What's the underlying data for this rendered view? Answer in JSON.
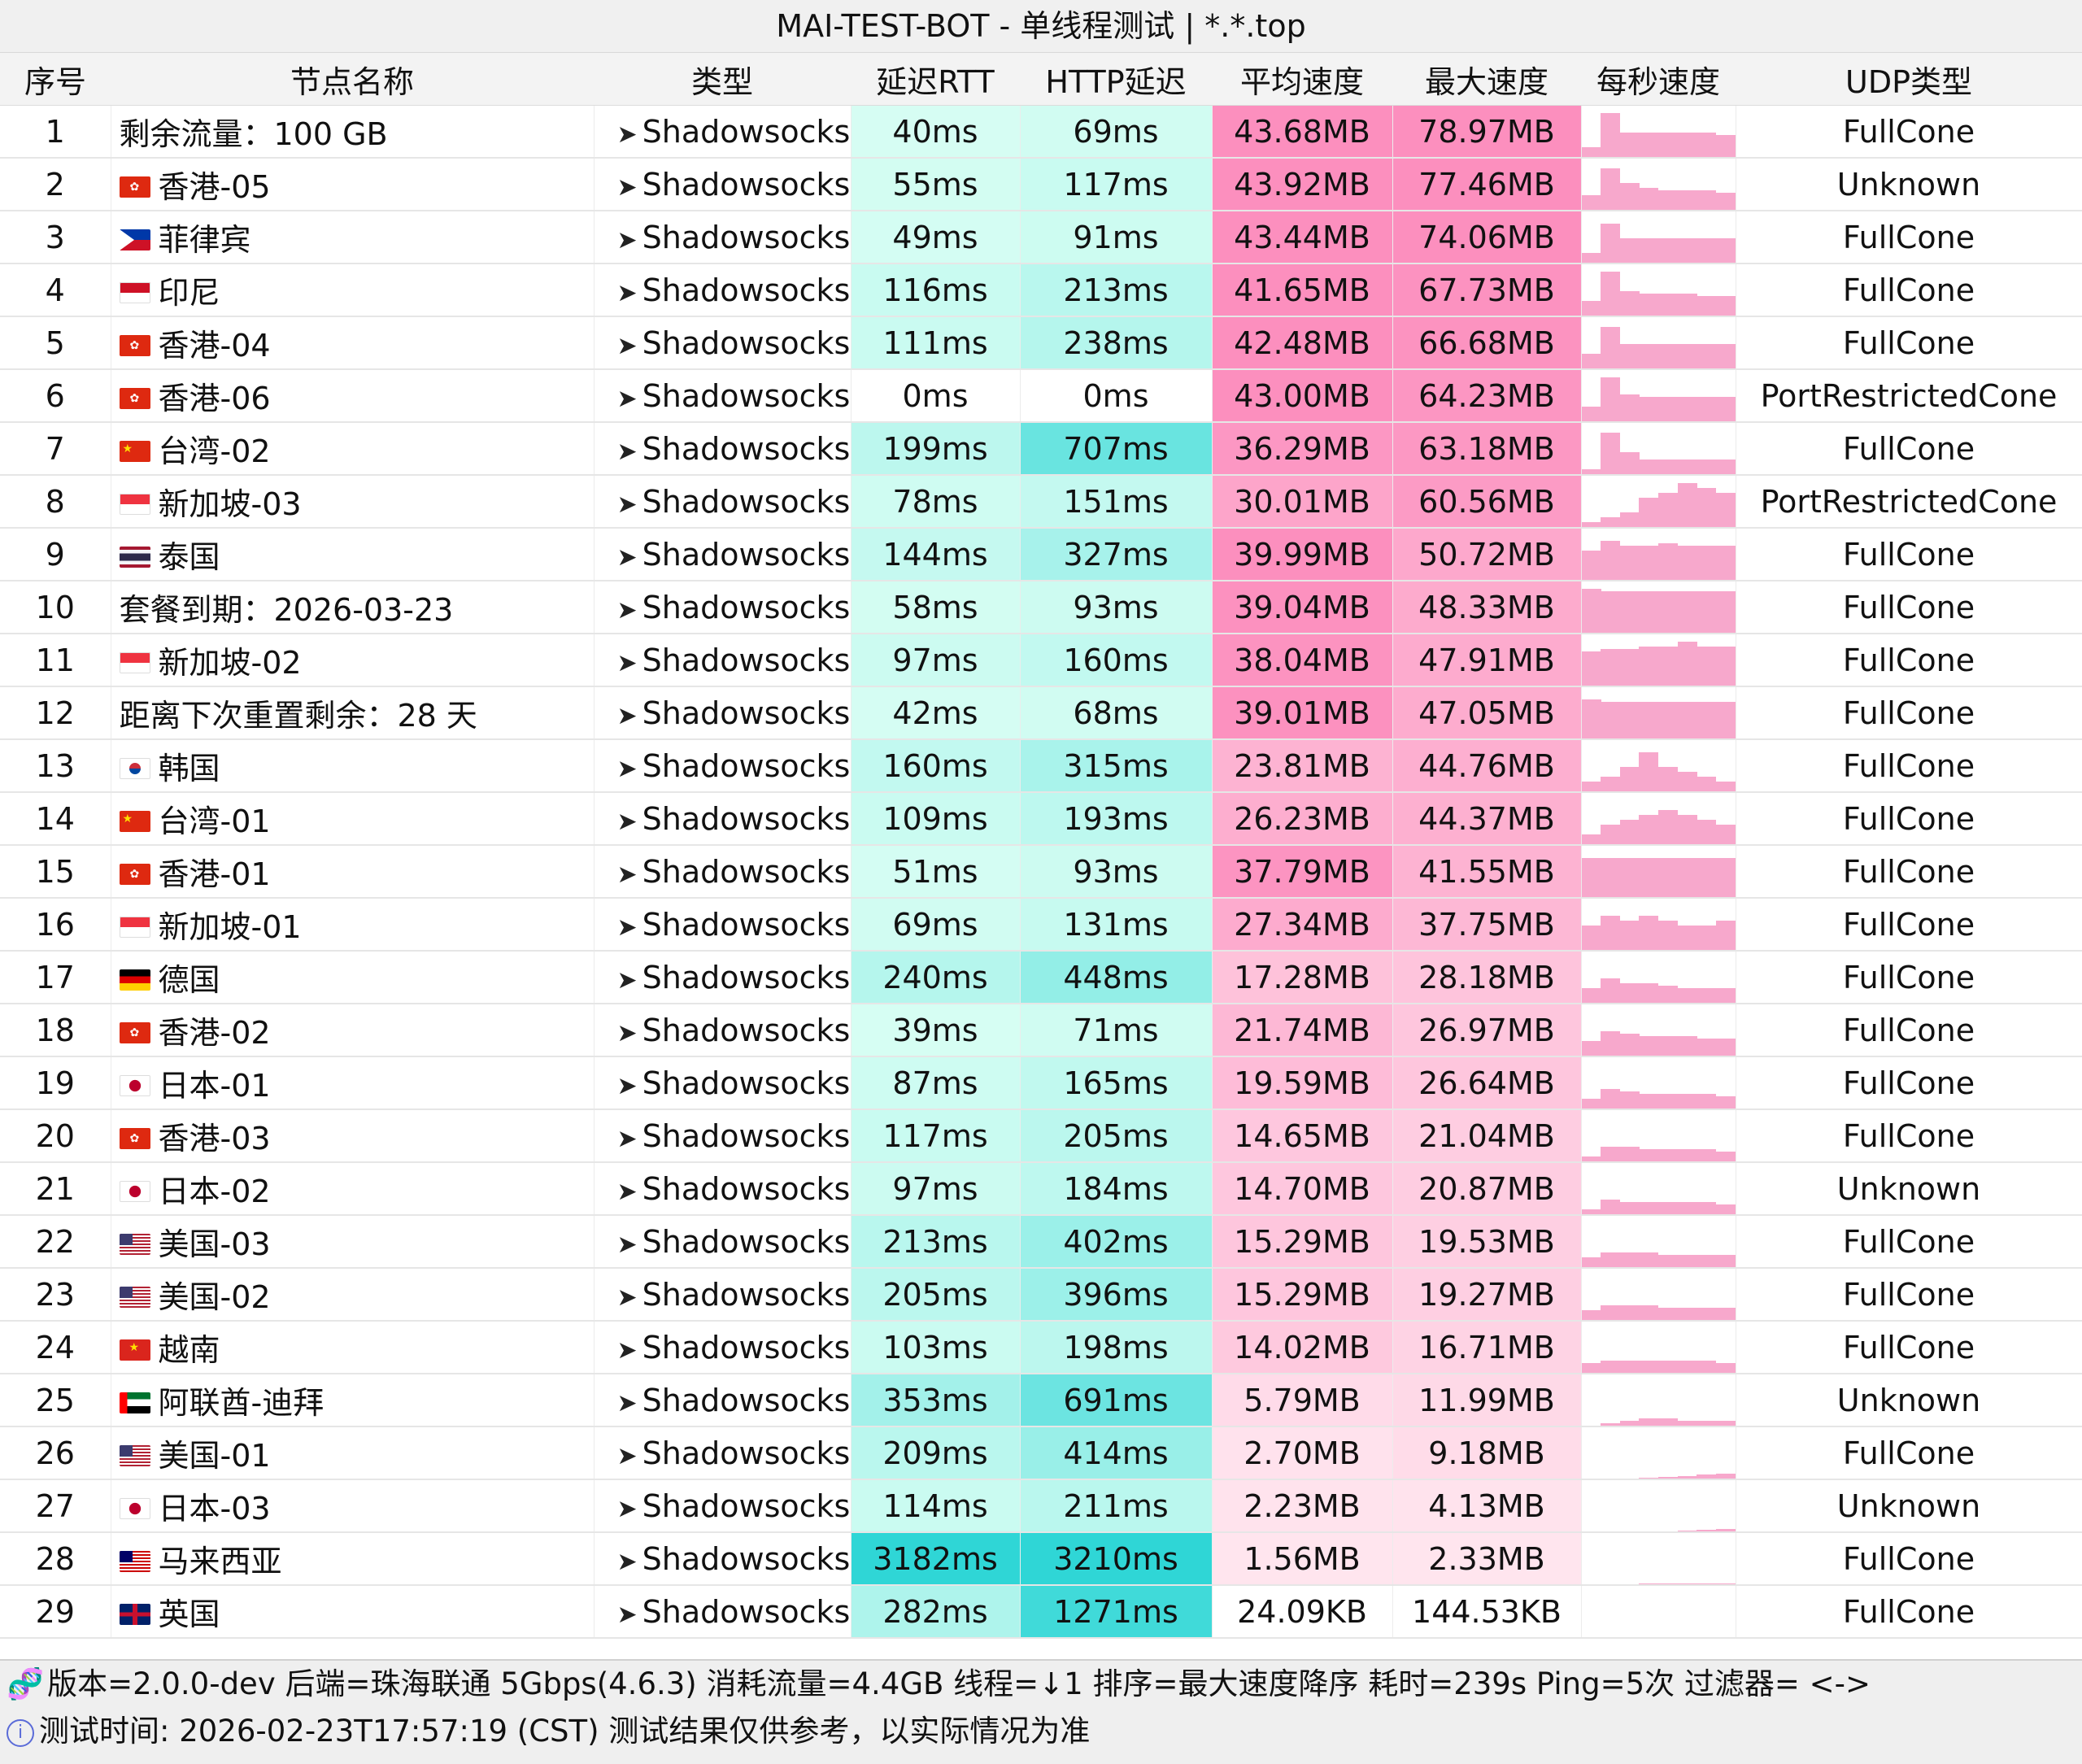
{
  "title": "MAI-TEST-BOT - 单线程测试 | *.*.top",
  "headers": [
    "序号",
    "节点名称",
    "类型",
    "延迟RTT",
    "HTTP延迟",
    "平均速度",
    "最大速度",
    "每秒速度",
    "UDP类型"
  ],
  "rows": [
    {
      "idx": "1",
      "flag": "none",
      "name": "剩余流量：100 GB",
      "type": "Shadowsocks",
      "rtt": "40ms",
      "http": "69ms",
      "avg": "43.68MB",
      "max": "78.97MB",
      "udp": "FullCone",
      "spark": [
        0.2,
        0.9,
        0.5,
        0.5,
        0.5,
        0.5,
        0.5,
        0.45
      ]
    },
    {
      "idx": "2",
      "flag": "hk",
      "name": "香港-05",
      "type": "Shadowsocks",
      "rtt": "55ms",
      "http": "117ms",
      "avg": "43.92MB",
      "max": "77.46MB",
      "udp": "Unknown",
      "spark": [
        0.3,
        0.85,
        0.55,
        0.45,
        0.4,
        0.4,
        0.4,
        0.35
      ]
    },
    {
      "idx": "3",
      "flag": "ph",
      "name": "菲律宾",
      "type": "Shadowsocks",
      "rtt": "49ms",
      "http": "91ms",
      "avg": "43.44MB",
      "max": "74.06MB",
      "udp": "FullCone",
      "spark": [
        0.2,
        0.8,
        0.5,
        0.5,
        0.5,
        0.5,
        0.5,
        0.5
      ]
    },
    {
      "idx": "4",
      "flag": "id",
      "name": "印尼",
      "type": "Shadowsocks",
      "rtt": "116ms",
      "http": "213ms",
      "avg": "41.65MB",
      "max": "67.73MB",
      "udp": "FullCone",
      "spark": [
        0.3,
        0.9,
        0.5,
        0.45,
        0.45,
        0.45,
        0.4,
        0.4
      ]
    },
    {
      "idx": "5",
      "flag": "hk",
      "name": "香港-04",
      "type": "Shadowsocks",
      "rtt": "111ms",
      "http": "238ms",
      "avg": "42.48MB",
      "max": "66.68MB",
      "udp": "FullCone",
      "spark": [
        0.3,
        0.85,
        0.5,
        0.5,
        0.5,
        0.5,
        0.5,
        0.5
      ]
    },
    {
      "idx": "6",
      "flag": "hk",
      "name": "香港-06",
      "type": "Shadowsocks",
      "rtt": "0ms",
      "http": "0ms",
      "avg": "43.00MB",
      "max": "64.23MB",
      "udp": "PortRestrictedCone",
      "spark": [
        0.3,
        0.9,
        0.55,
        0.5,
        0.5,
        0.5,
        0.5,
        0.5
      ]
    },
    {
      "idx": "7",
      "flag": "tw",
      "name": "台湾-02",
      "type": "Shadowsocks",
      "rtt": "199ms",
      "http": "707ms",
      "avg": "36.29MB",
      "max": "63.18MB",
      "udp": "FullCone",
      "spark": [
        0.1,
        0.85,
        0.45,
        0.3,
        0.3,
        0.3,
        0.3,
        0.3
      ]
    },
    {
      "idx": "8",
      "flag": "sg",
      "name": "新加坡-03",
      "type": "Shadowsocks",
      "rtt": "78ms",
      "http": "151ms",
      "avg": "30.01MB",
      "max": "60.56MB",
      "udp": "PortRestrictedCone",
      "spark": [
        0.1,
        0.2,
        0.3,
        0.6,
        0.7,
        0.9,
        0.8,
        0.7
      ]
    },
    {
      "idx": "9",
      "flag": "th",
      "name": "泰国",
      "type": "Shadowsocks",
      "rtt": "144ms",
      "http": "327ms",
      "avg": "39.99MB",
      "max": "50.72MB",
      "udp": "FullCone",
      "spark": [
        0.6,
        0.8,
        0.7,
        0.7,
        0.75,
        0.7,
        0.7,
        0.7
      ]
    },
    {
      "idx": "10",
      "flag": "none",
      "name": "套餐到期：2026-03-23",
      "type": "Shadowsocks",
      "rtt": "58ms",
      "http": "93ms",
      "avg": "39.04MB",
      "max": "48.33MB",
      "udp": "FullCone",
      "spark": [
        0.9,
        0.85,
        0.85,
        0.85,
        0.85,
        0.85,
        0.85,
        0.85
      ]
    },
    {
      "idx": "11",
      "flag": "sg",
      "name": "新加坡-02",
      "type": "Shadowsocks",
      "rtt": "97ms",
      "http": "160ms",
      "avg": "38.04MB",
      "max": "47.91MB",
      "udp": "FullCone",
      "spark": [
        0.7,
        0.75,
        0.75,
        0.8,
        0.8,
        0.9,
        0.8,
        0.8
      ]
    },
    {
      "idx": "12",
      "flag": "none",
      "name": "距离下次重置剩余：28 天",
      "type": "Shadowsocks",
      "rtt": "42ms",
      "http": "68ms",
      "avg": "39.01MB",
      "max": "47.05MB",
      "udp": "FullCone",
      "spark": [
        0.8,
        0.75,
        0.75,
        0.75,
        0.75,
        0.75,
        0.75,
        0.75
      ]
    },
    {
      "idx": "13",
      "flag": "kr",
      "name": "韩国",
      "type": "Shadowsocks",
      "rtt": "160ms",
      "http": "315ms",
      "avg": "23.81MB",
      "max": "44.76MB",
      "udp": "FullCone",
      "spark": [
        0.2,
        0.3,
        0.5,
        0.8,
        0.5,
        0.4,
        0.3,
        0.2
      ]
    },
    {
      "idx": "14",
      "flag": "tw",
      "name": "台湾-01",
      "type": "Shadowsocks",
      "rtt": "109ms",
      "http": "193ms",
      "avg": "26.23MB",
      "max": "44.37MB",
      "udp": "FullCone",
      "spark": [
        0.2,
        0.4,
        0.5,
        0.6,
        0.7,
        0.6,
        0.5,
        0.4
      ]
    },
    {
      "idx": "15",
      "flag": "hk",
      "name": "香港-01",
      "type": "Shadowsocks",
      "rtt": "51ms",
      "http": "93ms",
      "avg": "37.79MB",
      "max": "41.55MB",
      "udp": "FullCone",
      "spark": [
        0.8,
        0.8,
        0.8,
        0.8,
        0.8,
        0.8,
        0.8,
        0.8
      ]
    },
    {
      "idx": "16",
      "flag": "sg",
      "name": "新加坡-01",
      "type": "Shadowsocks",
      "rtt": "69ms",
      "http": "131ms",
      "avg": "27.34MB",
      "max": "37.75MB",
      "udp": "FullCone",
      "spark": [
        0.5,
        0.7,
        0.6,
        0.7,
        0.6,
        0.5,
        0.5,
        0.6
      ]
    },
    {
      "idx": "17",
      "flag": "de",
      "name": "德国",
      "type": "Shadowsocks",
      "rtt": "240ms",
      "http": "448ms",
      "avg": "17.28MB",
      "max": "28.18MB",
      "udp": "FullCone",
      "spark": [
        0.3,
        0.5,
        0.4,
        0.4,
        0.35,
        0.3,
        0.3,
        0.3
      ]
    },
    {
      "idx": "18",
      "flag": "hk",
      "name": "香港-02",
      "type": "Shadowsocks",
      "rtt": "39ms",
      "http": "71ms",
      "avg": "21.74MB",
      "max": "26.97MB",
      "udp": "FullCone",
      "spark": [
        0.3,
        0.5,
        0.45,
        0.4,
        0.4,
        0.4,
        0.35,
        0.35
      ]
    },
    {
      "idx": "19",
      "flag": "jp",
      "name": "日本-01",
      "type": "Shadowsocks",
      "rtt": "87ms",
      "http": "165ms",
      "avg": "19.59MB",
      "max": "26.64MB",
      "udp": "FullCone",
      "spark": [
        0.2,
        0.4,
        0.35,
        0.3,
        0.3,
        0.3,
        0.3,
        0.25
      ]
    },
    {
      "idx": "20",
      "flag": "hk",
      "name": "香港-03",
      "type": "Shadowsocks",
      "rtt": "117ms",
      "http": "205ms",
      "avg": "14.65MB",
      "max": "21.04MB",
      "udp": "FullCone",
      "spark": [
        0.1,
        0.3,
        0.3,
        0.25,
        0.25,
        0.25,
        0.25,
        0.2
      ]
    },
    {
      "idx": "21",
      "flag": "jp",
      "name": "日本-02",
      "type": "Shadowsocks",
      "rtt": "97ms",
      "http": "184ms",
      "avg": "14.70MB",
      "max": "20.87MB",
      "udp": "Unknown",
      "spark": [
        0.1,
        0.3,
        0.25,
        0.25,
        0.25,
        0.25,
        0.25,
        0.2
      ]
    },
    {
      "idx": "22",
      "flag": "us",
      "name": "美国-03",
      "type": "Shadowsocks",
      "rtt": "213ms",
      "http": "402ms",
      "avg": "15.29MB",
      "max": "19.53MB",
      "udp": "FullCone",
      "spark": [
        0.2,
        0.3,
        0.3,
        0.3,
        0.25,
        0.25,
        0.25,
        0.25
      ]
    },
    {
      "idx": "23",
      "flag": "us",
      "name": "美国-02",
      "type": "Shadowsocks",
      "rtt": "205ms",
      "http": "396ms",
      "avg": "15.29MB",
      "max": "19.27MB",
      "udp": "FullCone",
      "spark": [
        0.2,
        0.3,
        0.3,
        0.3,
        0.25,
        0.25,
        0.25,
        0.25
      ]
    },
    {
      "idx": "24",
      "flag": "vn",
      "name": "越南",
      "type": "Shadowsocks",
      "rtt": "103ms",
      "http": "198ms",
      "avg": "14.02MB",
      "max": "16.71MB",
      "udp": "FullCone",
      "spark": [
        0.2,
        0.25,
        0.25,
        0.25,
        0.25,
        0.25,
        0.25,
        0.2
      ]
    },
    {
      "idx": "25",
      "flag": "ae",
      "name": "阿联酋-迪拜",
      "type": "Shadowsocks",
      "rtt": "353ms",
      "http": "691ms",
      "avg": "5.79MB",
      "max": "11.99MB",
      "udp": "Unknown",
      "spark": [
        0.0,
        0.05,
        0.1,
        0.15,
        0.15,
        0.1,
        0.1,
        0.1
      ]
    },
    {
      "idx": "26",
      "flag": "us",
      "name": "美国-01",
      "type": "Shadowsocks",
      "rtt": "209ms",
      "http": "414ms",
      "avg": "2.70MB",
      "max": "9.18MB",
      "udp": "FullCone",
      "spark": [
        0.0,
        0.0,
        0.0,
        0.02,
        0.03,
        0.05,
        0.08,
        0.1
      ]
    },
    {
      "idx": "27",
      "flag": "jp",
      "name": "日本-03",
      "type": "Shadowsocks",
      "rtt": "114ms",
      "http": "211ms",
      "avg": "2.23MB",
      "max": "4.13MB",
      "udp": "Unknown",
      "spark": [
        0.0,
        0.0,
        0.0,
        0.0,
        0.0,
        0.02,
        0.03,
        0.05
      ]
    },
    {
      "idx": "28",
      "flag": "my",
      "name": "马来西亚",
      "type": "Shadowsocks",
      "rtt": "3182ms",
      "http": "3210ms",
      "avg": "1.56MB",
      "max": "2.33MB",
      "udp": "FullCone",
      "spark": [
        0.0,
        0.0,
        0.0,
        0.02,
        0.02,
        0.02,
        0.02,
        0.02
      ]
    },
    {
      "idx": "29",
      "flag": "gb",
      "name": "英国",
      "type": "Shadowsocks",
      "rtt": "282ms",
      "http": "1271ms",
      "avg": "24.09KB",
      "max": "144.53KB",
      "udp": "FullCone",
      "spark": [
        0,
        0,
        0,
        0,
        0,
        0,
        0,
        0
      ]
    }
  ],
  "footer": {
    "line1": "版本=2.0.0-dev  后端=珠海联通 5Gbps(4.6.3) 消耗流量=4.4GB  线程=↓1  排序=最大速度降序  耗时=239s  Ping=5次  过滤器= <->",
    "line2": "测试时间: 2026-02-23T17:57:19 (CST)  测试结果仅供参考，以实际情况为准"
  },
  "colors": {
    "rtt_light": "#dcfff4",
    "rtt_dark": "#2fd6d6",
    "speed_strong": "#fc8fbe",
    "speed_light": "#ffe8f0",
    "spark": "#f7a8cc"
  },
  "icons": {
    "type": "paper-plane-icon",
    "footer1": "dna-icon",
    "footer2": "info-icon"
  }
}
